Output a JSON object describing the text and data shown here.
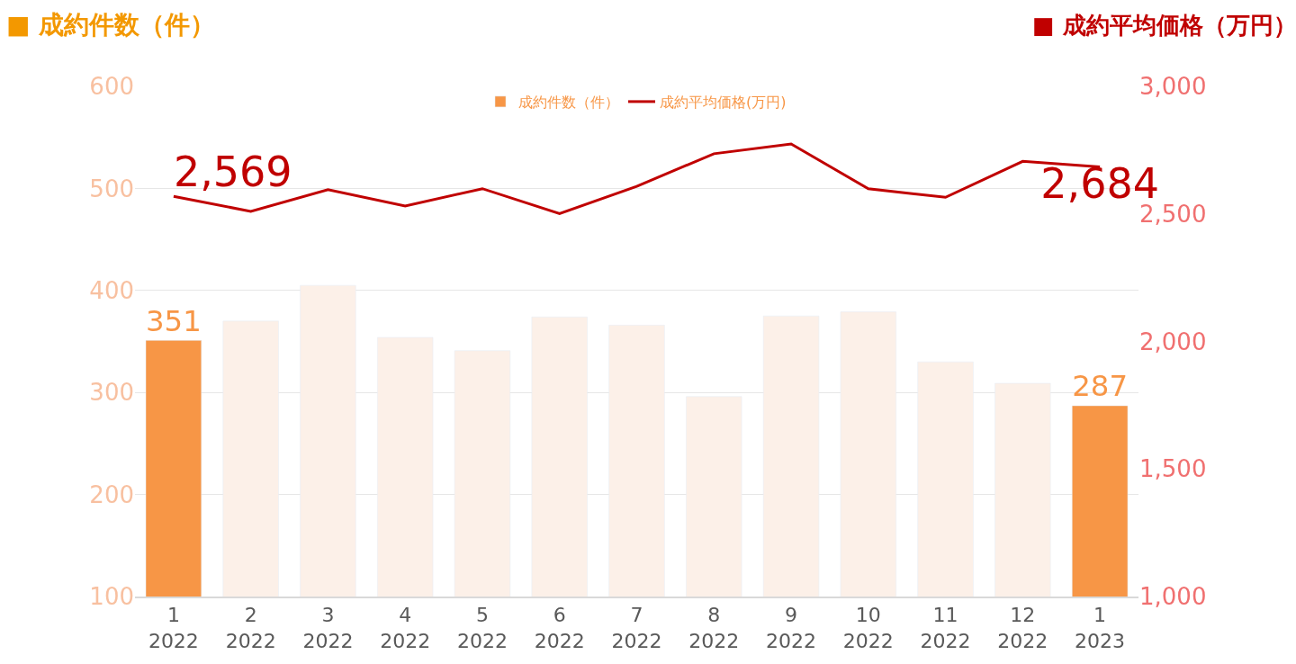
{
  "chart_data": {
    "type": "bar",
    "ylabel": "■ 成約件数（件）",
    "y2label": "■ 成約平均価格（万円）",
    "categories": [
      "1\n2022",
      "2\n2022",
      "3\n2022",
      "4\n2022",
      "5\n2022",
      "6\n2022",
      "7\n2022",
      "8\n2022",
      "9\n2022",
      "10\n2022",
      "11\n2022",
      "12\n2022",
      "1\n2023"
    ],
    "series": [
      {
        "name": "成約件数（件）",
        "color": "#fcf0e8",
        "colors": [
          "#f79646",
          "#fcf0e8",
          "#fcf0e8",
          "#fcf0e8",
          "#fcf0e8",
          "#fcf0e8",
          "#fcf0e8",
          "#fcf0e8",
          "#fcf0e8",
          "#fcf0e8",
          "#fcf0e8",
          "#fcf0e8",
          "#f79646"
        ],
        "values": [
          351,
          370,
          405,
          354,
          341,
          374,
          366,
          296,
          375,
          379,
          330,
          309,
          287
        ],
        "value_labels": [
          "351",
          null,
          null,
          null,
          null,
          null,
          null,
          null,
          null,
          null,
          null,
          null,
          "287"
        ]
      },
      {
        "name": "成約平均価格(万円)",
        "type": "line",
        "axis": "y2",
        "color": "#c00000",
        "values": [
          2569,
          2510,
          2595,
          2531,
          2599,
          2501,
          2608,
          2736,
          2774,
          2599,
          2565,
          2706,
          2684
        ],
        "value_labels": [
          "2,569",
          null,
          null,
          null,
          null,
          null,
          null,
          null,
          null,
          null,
          null,
          null,
          "2,684"
        ]
      }
    ],
    "ylim": [
      100,
      600
    ],
    "yticks": [
      100,
      200,
      300,
      400,
      500,
      600
    ],
    "y2lim": [
      1000,
      3000
    ],
    "y2ticks": [
      {
        "value": 1000,
        "label": "1,000"
      },
      {
        "value": 1500,
        "label": "1,500"
      },
      {
        "value": 2000,
        "label": "2,000"
      },
      {
        "value": 2500,
        "label": "2,500"
      },
      {
        "value": 3000,
        "label": "3,000"
      }
    ],
    "grid": "y",
    "legend": "top",
    "marker": "none",
    "line_style": "solid"
  }
}
